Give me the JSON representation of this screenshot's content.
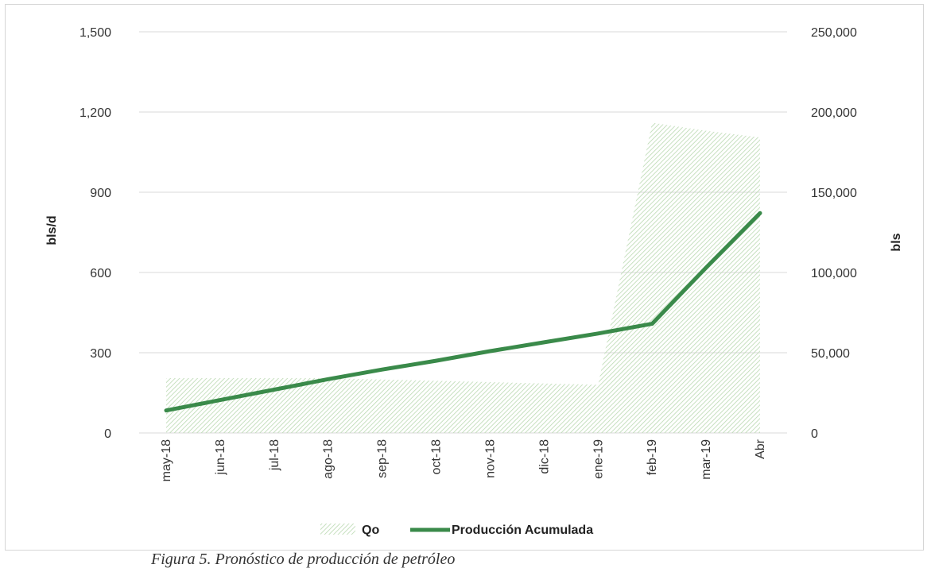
{
  "chart_data": {
    "type": "area",
    "categories": [
      "may-18",
      "jun-18",
      "jul-18",
      "ago-18",
      "sep-18",
      "oct-18",
      "nov-18",
      "dic-18",
      "ene-19",
      "feb-19",
      "mar-19",
      "Abr"
    ],
    "series": [
      {
        "name": "Qo",
        "type": "area",
        "axis": "left",
        "values": [
          205,
          205,
          205,
          205,
          200,
          195,
          190,
          185,
          180,
          1160,
          1130,
          1105
        ]
      },
      {
        "name": "Producción Acumulada",
        "type": "line",
        "axis": "right",
        "values": [
          14000,
          20500,
          27000,
          33500,
          39500,
          45000,
          51000,
          56500,
          62000,
          68000,
          103000,
          137000
        ]
      }
    ],
    "ylabel": "bls/d",
    "y2label": "bls",
    "ylim": [
      0,
      1500
    ],
    "y2lim": [
      0,
      250000
    ],
    "yticks": [
      "0",
      "300",
      "600",
      "900",
      "1,200",
      "1,500"
    ],
    "y2ticks": [
      "0",
      "50,000",
      "100,000",
      "150,000",
      "200,000",
      "250,000"
    ],
    "grid": true,
    "legend_position": "bottom",
    "colors": {
      "area_hatch": "#b9d8b0",
      "line": "#3a8a4a",
      "grid": "#d9d9d9"
    }
  },
  "caption": "Figura 5. Pronóstico de producción de petróleo"
}
